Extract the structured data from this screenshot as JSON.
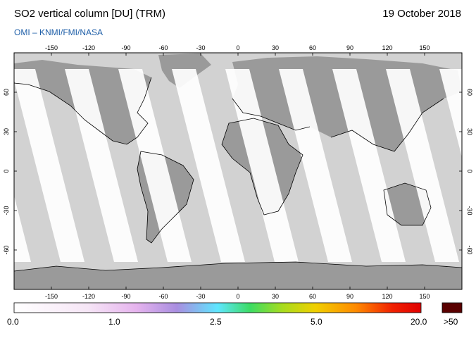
{
  "header": {
    "title": "SO2 vertical column [DU] (TRM)",
    "date": "19 October 2018",
    "credit": "OMI  –  KNMI/FMI/NASA"
  },
  "map": {
    "projection": "equirectangular",
    "lon_range": [
      -180,
      180
    ],
    "lat_range": [
      -90,
      90
    ],
    "lon_ticks": [
      "-150",
      "-120",
      "-90",
      "-60",
      "-30",
      "0",
      "30",
      "60",
      "90",
      "120",
      "150"
    ],
    "lat_ticks": [
      "60",
      "30",
      "0",
      "-30",
      "-60"
    ],
    "colors": {
      "no_data": "#d2d2d2",
      "land": "#9a9a9a",
      "swath": "#ffffff",
      "coast": "#000000"
    }
  },
  "colorbar": {
    "labels": [
      "0.0",
      "1.0",
      "2.5",
      "5.0",
      "20.0",
      ">50"
    ],
    "colors": [
      "#ffffff",
      "#f6e6f6",
      "#e6b4ee",
      "#a98ee0",
      "#5fe6ff",
      "#3cdc64",
      "#a8dc1e",
      "#f0d000",
      "#ff8a00",
      "#f02000",
      "#e00000"
    ],
    "overflow_color": "#5a0000"
  }
}
